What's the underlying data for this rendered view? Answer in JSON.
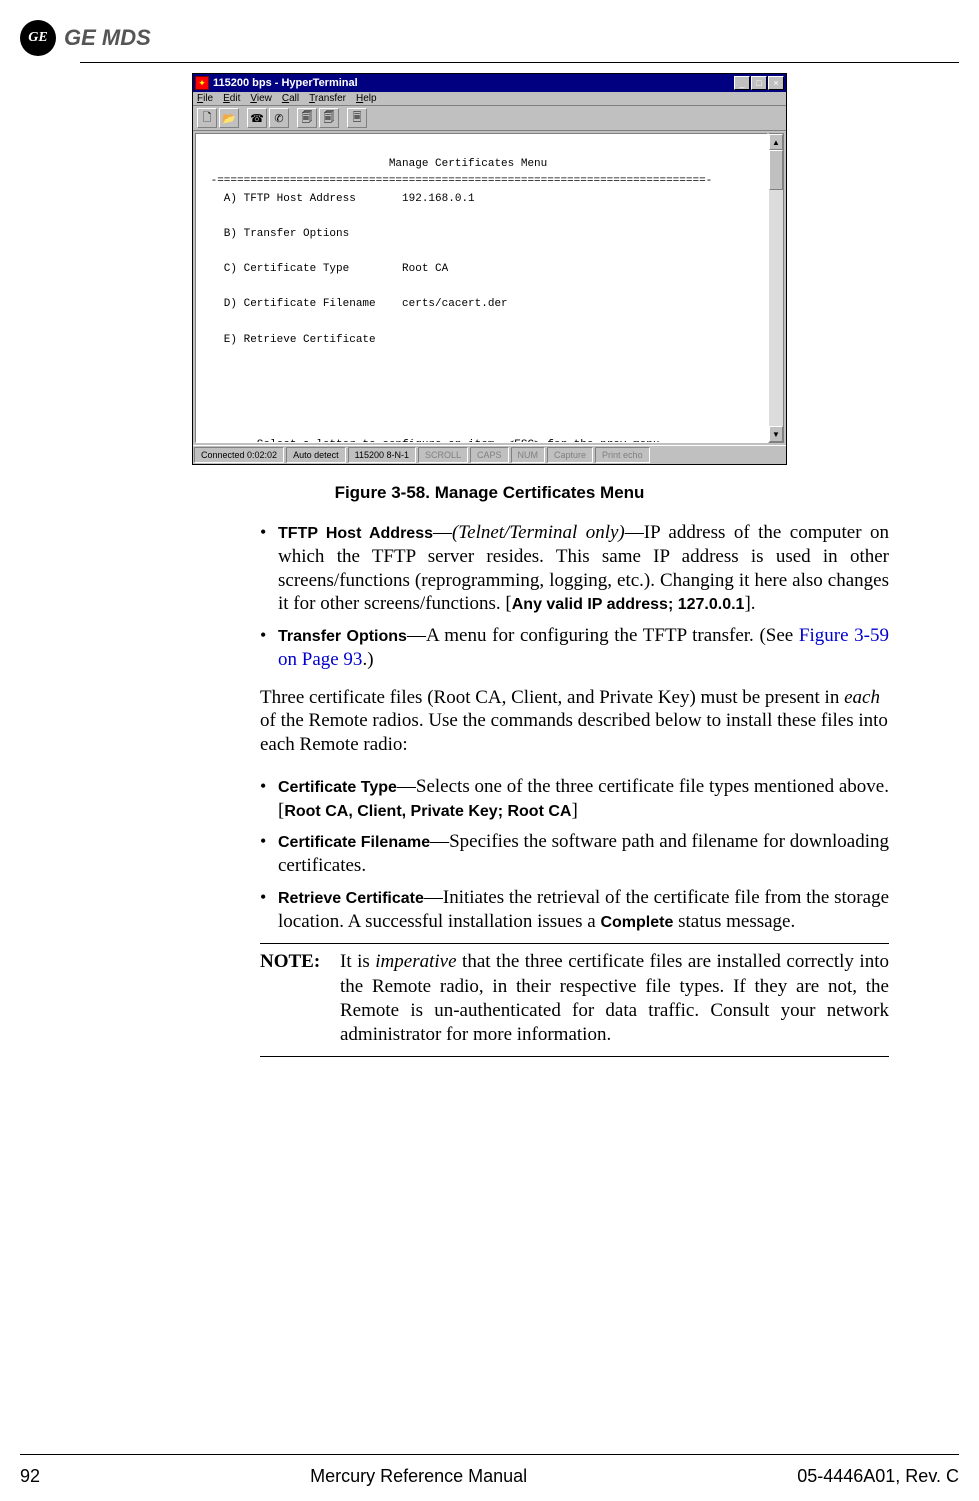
{
  "header": {
    "brand": "GE MDS",
    "ge_monogram": "GE"
  },
  "hyperterminal": {
    "title": "115200 bps - HyperTerminal",
    "menubar": [
      "File",
      "Edit",
      "View",
      "Call",
      "Transfer",
      "Help"
    ],
    "toolbar_icons": [
      "new-doc-icon",
      "open-icon",
      "connect-icon",
      "disconnect-icon",
      "send-icon",
      "receive-icon",
      "properties-icon"
    ],
    "terminal": {
      "heading": "Manage Certificates Menu",
      "items": [
        {
          "key": "A)",
          "label": "TFTP Host Address",
          "value": "192.168.0.1"
        },
        {
          "key": "B)",
          "label": "Transfer Options",
          "value": ""
        },
        {
          "key": "C)",
          "label": "Certificate Type",
          "value": "Root CA"
        },
        {
          "key": "D)",
          "label": "Certificate Filename",
          "value": "certs/cacert.der"
        },
        {
          "key": "E)",
          "label": "Retrieve Certificate",
          "value": ""
        }
      ],
      "footer_prompt": "Select a letter to configure an item, <ESC> for the prev menu",
      "cursor": "_"
    },
    "statusbar": {
      "connected": "Connected 0:02:02",
      "autodetect": "Auto detect",
      "settings": "115200 8-N-1",
      "scroll": "SCROLL",
      "caps": "CAPS",
      "num": "NUM",
      "capture": "Capture",
      "printecho": "Print echo"
    },
    "colors": {
      "titlebar_bg": "#000080",
      "titlebar_fg": "#ffffff",
      "chrome_bg": "#c0c0c0",
      "terminal_bg": "#ffffff",
      "terminal_fg": "#000000",
      "dim_text": "#808080"
    }
  },
  "figure_caption": "Figure 3-58. Manage Certificates Menu",
  "bullets1": {
    "tftp": {
      "label": "TFTP Host Address",
      "qualifier": "(Telnet/Terminal only)",
      "text": "—IP address of the computer on which the TFTP server resides. This same IP address is used in other screens/functions (reprogramming, logging, etc.). Changing it here also changes it for other screens/functions. [",
      "range": "Any valid IP address; 127.0.0.1",
      "text_end": "]."
    },
    "transfer": {
      "label": "Transfer Options",
      "text": "—A menu for configuring the TFTP transfer. (See ",
      "link": "Figure 3-59 on Page 93",
      "text_end": ".)"
    }
  },
  "paragraph": {
    "pre": "Three certificate files (Root CA, Client, and Private Key) must be present in ",
    "ital": "each",
    "post": " of the Remote radios. Use the commands described below to install these files into each Remote radio:"
  },
  "bullets2": {
    "cert_type": {
      "label": "Certificate Type",
      "text": "—Selects one of the three certificate file types mentioned above. [",
      "range": "Root CA, Client, Private Key; Root CA",
      "text_end": "]"
    },
    "cert_filename": {
      "label": "Certificate Filename",
      "text": "—Specifies the software path and filename for downloading certificates."
    },
    "retrieve": {
      "label": "Retrieve Certificate",
      "text": "—Initiates the retrieval of the certificate file from the storage location. A successful installation issues a ",
      "status": "Complete",
      "text_end": " status message."
    }
  },
  "note": {
    "label": "NOTE:",
    "pre": "It is ",
    "ital": "imperative",
    "post": " that the three certificate files are installed correctly into the Remote radio, in their respective file types. If they are not, the Remote is un-authenticated for data traffic. Consult your network administrator for more information."
  },
  "footer": {
    "page": "92",
    "title": "Mercury Reference Manual",
    "doc": "05-4446A01, Rev. C"
  }
}
